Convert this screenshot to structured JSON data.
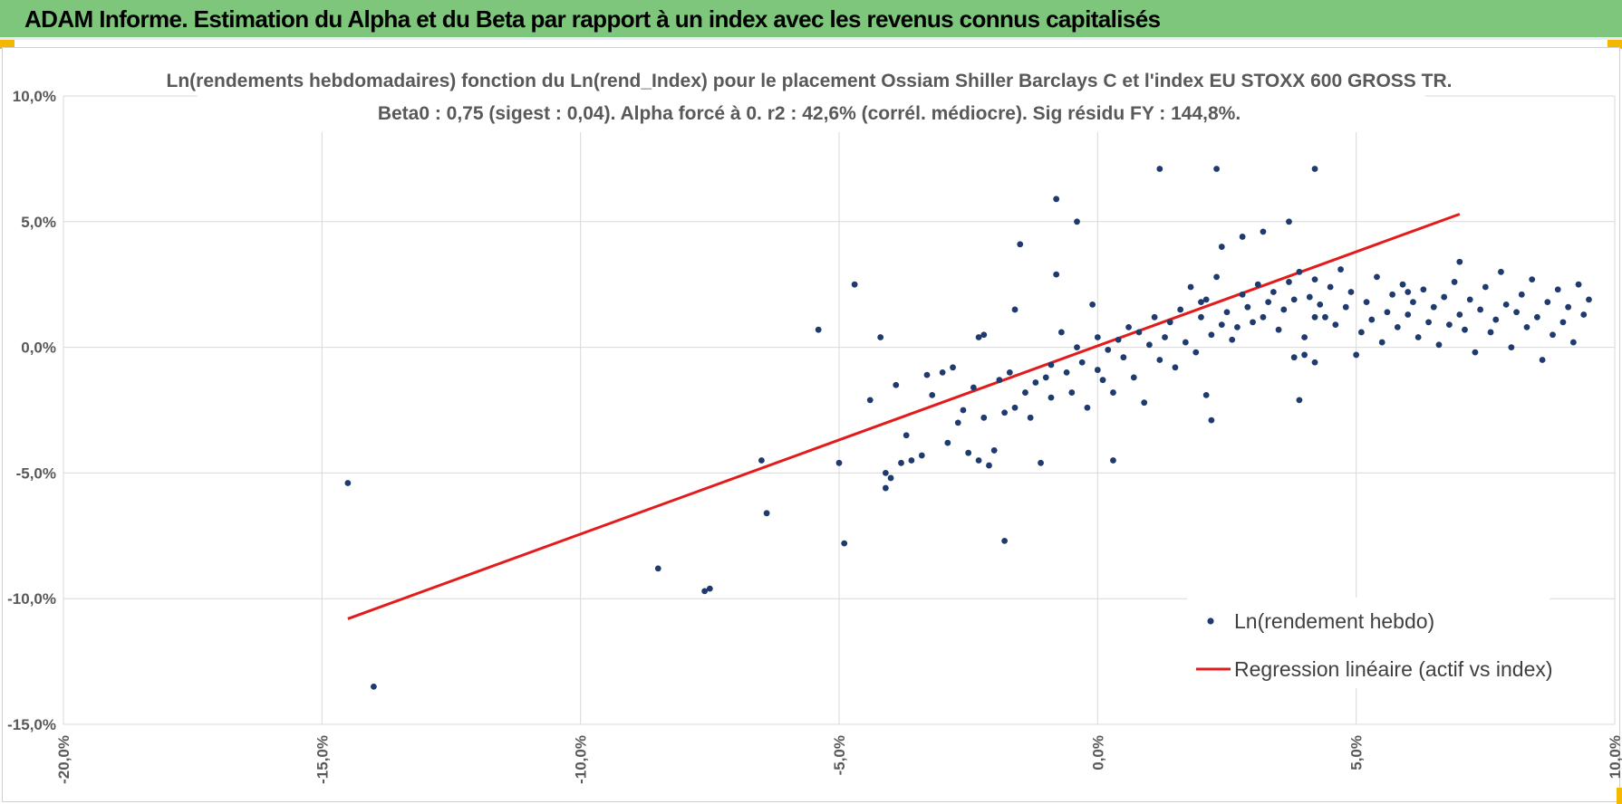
{
  "header": {
    "title": "ADAM Informe. Estimation du Alpha et du Beta par rapport à un index avec les revenus connus capitalisés",
    "background": "#7dc67b"
  },
  "chart_data": {
    "type": "scatter",
    "title": "Ln(rendements hebdomadaires) fonction du Ln(rend_Index) pour le placement Ossiam Shiller Barclays C et l'index EU STOXX 600 GROSS TR.",
    "subtitle": "Beta0 : 0,75 (sigest : 0,04). Alpha forcé à 0. r2 : 42,6% (corrél. médiocre). Sig résidu FY : 144,8%.",
    "xlabel": "",
    "ylabel": "",
    "xlim": [
      -0.2,
      0.1
    ],
    "ylim": [
      -0.15,
      0.1
    ],
    "x_ticks": [
      -0.2,
      -0.15,
      -0.1,
      -0.05,
      0.0,
      0.05,
      0.1
    ],
    "x_tick_labels": [
      "-20,0%",
      "-15,0%",
      "-10,0%",
      "-5,0%",
      "0,0%",
      "5,0%",
      "10,0%"
    ],
    "y_ticks": [
      0.1,
      0.05,
      0.0,
      -0.05,
      -0.1,
      -0.15
    ],
    "y_tick_labels": [
      "10,0%",
      "5,0%",
      "0,0%",
      "-5,0%",
      "-10,0%",
      "-15,0%"
    ],
    "grid": true,
    "legend_position": "bottom-right",
    "series": [
      {
        "name": "Ln(rendement hebdo)",
        "kind": "scatter",
        "color": "#1f3a6e",
        "points": [
          [
            -0.145,
            -0.054
          ],
          [
            -0.14,
            -0.135
          ],
          [
            -0.085,
            -0.088
          ],
          [
            -0.076,
            -0.097
          ],
          [
            -0.075,
            -0.096
          ],
          [
            -0.065,
            -0.045
          ],
          [
            -0.064,
            -0.066
          ],
          [
            -0.054,
            0.007
          ],
          [
            -0.05,
            -0.046
          ],
          [
            -0.049,
            -0.078
          ],
          [
            -0.047,
            0.025
          ],
          [
            -0.044,
            -0.021
          ],
          [
            -0.042,
            0.004
          ],
          [
            -0.041,
            -0.05
          ],
          [
            -0.041,
            -0.056
          ],
          [
            -0.04,
            -0.052
          ],
          [
            -0.039,
            -0.015
          ],
          [
            -0.038,
            -0.046
          ],
          [
            -0.037,
            -0.035
          ],
          [
            -0.036,
            -0.045
          ],
          [
            -0.034,
            -0.043
          ],
          [
            -0.033,
            -0.011
          ],
          [
            -0.032,
            -0.019
          ],
          [
            -0.03,
            -0.01
          ],
          [
            -0.029,
            -0.038
          ],
          [
            -0.028,
            -0.008
          ],
          [
            -0.027,
            -0.03
          ],
          [
            -0.026,
            -0.025
          ],
          [
            -0.025,
            -0.042
          ],
          [
            -0.024,
            -0.016
          ],
          [
            -0.023,
            -0.045
          ],
          [
            -0.023,
            0.004
          ],
          [
            -0.022,
            -0.028
          ],
          [
            -0.022,
            0.005
          ],
          [
            -0.021,
            -0.047
          ],
          [
            -0.02,
            -0.041
          ],
          [
            -0.019,
            -0.013
          ],
          [
            -0.018,
            -0.077
          ],
          [
            -0.018,
            -0.026
          ],
          [
            -0.017,
            -0.01
          ],
          [
            -0.016,
            -0.024
          ],
          [
            -0.016,
            0.015
          ],
          [
            -0.015,
            0.041
          ],
          [
            -0.014,
            -0.018
          ],
          [
            -0.013,
            -0.028
          ],
          [
            -0.012,
            -0.014
          ],
          [
            -0.011,
            -0.046
          ],
          [
            -0.01,
            -0.012
          ],
          [
            -0.009,
            -0.007
          ],
          [
            -0.009,
            -0.02
          ],
          [
            -0.008,
            0.029
          ],
          [
            -0.007,
            0.006
          ],
          [
            -0.006,
            -0.01
          ],
          [
            -0.005,
            -0.018
          ],
          [
            -0.004,
            0.0
          ],
          [
            -0.003,
            -0.006
          ],
          [
            -0.002,
            -0.024
          ],
          [
            -0.001,
            0.017
          ],
          [
            0.0,
            -0.009
          ],
          [
            0.0,
            0.004
          ],
          [
            0.001,
            -0.013
          ],
          [
            0.002,
            -0.001
          ],
          [
            0.003,
            -0.018
          ],
          [
            0.004,
            0.003
          ],
          [
            0.005,
            -0.004
          ],
          [
            0.006,
            0.008
          ],
          [
            0.007,
            -0.012
          ],
          [
            0.008,
            0.006
          ],
          [
            0.009,
            -0.022
          ],
          [
            0.01,
            0.001
          ],
          [
            0.011,
            0.012
          ],
          [
            0.012,
            -0.005
          ],
          [
            0.013,
            0.004
          ],
          [
            0.014,
            0.01
          ],
          [
            0.015,
            -0.008
          ],
          [
            0.016,
            0.015
          ],
          [
            0.017,
            0.002
          ],
          [
            0.018,
            0.024
          ],
          [
            0.019,
            -0.002
          ],
          [
            0.02,
            0.012
          ],
          [
            0.021,
            0.019
          ],
          [
            0.022,
            0.005
          ],
          [
            0.023,
            0.028
          ],
          [
            0.024,
            0.009
          ],
          [
            0.025,
            0.014
          ],
          [
            0.026,
            0.003
          ],
          [
            0.027,
            0.008
          ],
          [
            0.028,
            0.021
          ],
          [
            0.029,
            0.016
          ],
          [
            0.03,
            0.01
          ],
          [
            0.031,
            0.025
          ],
          [
            0.032,
            0.012
          ],
          [
            0.033,
            0.018
          ],
          [
            0.034,
            0.022
          ],
          [
            0.035,
            0.007
          ],
          [
            0.036,
            0.015
          ],
          [
            0.037,
            0.026
          ],
          [
            0.038,
            0.019
          ],
          [
            0.039,
            0.03
          ],
          [
            0.04,
            0.004
          ],
          [
            0.041,
            0.02
          ],
          [
            0.042,
            -0.006
          ],
          [
            0.043,
            0.017
          ],
          [
            0.044,
            0.012
          ],
          [
            0.045,
            0.024
          ],
          [
            0.046,
            0.009
          ],
          [
            0.047,
            0.031
          ],
          [
            0.048,
            0.016
          ],
          [
            0.049,
            0.022
          ],
          [
            0.05,
            -0.003
          ],
          [
            0.051,
            0.006
          ],
          [
            0.052,
            0.018
          ],
          [
            0.053,
            0.011
          ],
          [
            0.054,
            0.028
          ],
          [
            0.055,
            0.002
          ],
          [
            0.056,
            0.014
          ],
          [
            0.057,
            0.021
          ],
          [
            0.058,
            0.008
          ],
          [
            0.059,
            0.025
          ],
          [
            0.06,
            0.013
          ],
          [
            0.061,
            0.018
          ],
          [
            0.062,
            0.004
          ],
          [
            0.063,
            0.023
          ],
          [
            0.064,
            0.01
          ],
          [
            0.065,
            0.016
          ],
          [
            0.066,
            0.001
          ],
          [
            0.067,
            0.02
          ],
          [
            0.068,
            0.009
          ],
          [
            0.069,
            0.026
          ],
          [
            0.07,
            0.013
          ],
          [
            0.071,
            0.007
          ],
          [
            0.072,
            0.019
          ],
          [
            0.073,
            -0.002
          ],
          [
            0.074,
            0.015
          ],
          [
            0.075,
            0.024
          ],
          [
            0.076,
            0.006
          ],
          [
            0.077,
            0.011
          ],
          [
            0.078,
            0.03
          ],
          [
            0.079,
            0.017
          ],
          [
            0.08,
            0.0
          ],
          [
            0.081,
            0.014
          ],
          [
            0.082,
            0.021
          ],
          [
            0.083,
            0.008
          ],
          [
            0.084,
            0.027
          ],
          [
            0.085,
            0.012
          ],
          [
            0.086,
            -0.005
          ],
          [
            0.087,
            0.018
          ],
          [
            0.088,
            0.005
          ],
          [
            0.089,
            0.023
          ],
          [
            0.09,
            0.01
          ],
          [
            0.091,
            0.016
          ],
          [
            0.092,
            0.002
          ],
          [
            0.093,
            0.025
          ],
          [
            0.094,
            0.013
          ],
          [
            0.095,
            0.019
          ],
          [
            -0.008,
            0.059
          ],
          [
            -0.004,
            0.05
          ],
          [
            0.003,
            -0.045
          ],
          [
            0.012,
            0.071
          ],
          [
            0.023,
            0.071
          ],
          [
            0.028,
            0.044
          ],
          [
            0.032,
            0.046
          ],
          [
            0.037,
            0.05
          ],
          [
            0.038,
            -0.004
          ],
          [
            0.039,
            -0.021
          ],
          [
            0.04,
            -0.003
          ],
          [
            0.042,
            0.027
          ],
          [
            0.042,
            0.012
          ],
          [
            0.042,
            0.071
          ],
          [
            0.06,
            0.022
          ],
          [
            0.07,
            0.034
          ],
          [
            0.022,
            -0.029
          ],
          [
            0.021,
            -0.019
          ],
          [
            0.024,
            0.04
          ],
          [
            0.02,
            0.018
          ]
        ]
      },
      {
        "name": "Regression linéaire (actif vs index)",
        "kind": "line",
        "color": "#e31b1b",
        "points": [
          [
            -0.145,
            -0.108
          ],
          [
            0.07,
            0.053
          ]
        ]
      }
    ]
  }
}
